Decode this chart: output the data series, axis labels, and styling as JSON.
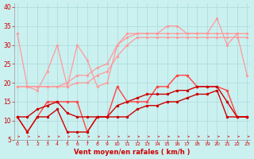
{
  "x": [
    0,
    1,
    2,
    3,
    4,
    5,
    6,
    7,
    8,
    9,
    10,
    11,
    12,
    13,
    14,
    15,
    16,
    17,
    18,
    19,
    20,
    21,
    22,
    23
  ],
  "series": [
    {
      "color": "#FF9999",
      "lw": 0.9,
      "marker": "o",
      "ms": 1.8,
      "values": [
        33,
        19,
        18,
        23,
        30,
        19,
        30,
        26,
        19,
        20,
        30,
        33,
        33,
        33,
        33,
        35,
        35,
        33,
        33,
        33,
        37,
        30,
        33,
        22
      ]
    },
    {
      "color": "#FF9999",
      "lw": 0.9,
      "marker": "o",
      "ms": 1.8,
      "values": [
        19,
        19,
        19,
        19,
        19,
        20,
        22,
        22,
        24,
        25,
        30,
        32,
        33,
        33,
        33,
        33,
        33,
        33,
        33,
        33,
        33,
        33,
        33,
        33
      ]
    },
    {
      "color": "#FF9999",
      "lw": 0.9,
      "marker": "o",
      "ms": 1.8,
      "values": [
        19,
        19,
        19,
        19,
        19,
        19,
        20,
        20,
        22,
        23,
        27,
        30,
        32,
        32,
        32,
        32,
        32,
        32,
        32,
        32,
        32,
        32,
        32,
        32
      ]
    },
    {
      "color": "#FF4444",
      "lw": 1.0,
      "marker": "o",
      "ms": 2.0,
      "values": [
        11,
        7,
        11,
        15,
        15,
        15,
        15,
        7,
        11,
        11,
        19,
        15,
        15,
        15,
        19,
        19,
        22,
        22,
        19,
        19,
        19,
        18,
        11,
        11
      ]
    },
    {
      "color": "#CC0000",
      "lw": 1.0,
      "marker": "o",
      "ms": 2.0,
      "values": [
        11,
        11,
        13,
        14,
        15,
        12,
        11,
        11,
        11,
        11,
        14,
        15,
        16,
        17,
        17,
        17,
        18,
        18,
        19,
        19,
        19,
        15,
        11,
        11
      ]
    },
    {
      "color": "#CC0000",
      "lw": 1.0,
      "marker": "o",
      "ms": 2.0,
      "values": [
        11,
        7,
        11,
        11,
        13,
        7,
        7,
        7,
        11,
        11,
        11,
        11,
        13,
        14,
        14,
        15,
        15,
        16,
        17,
        17,
        18,
        11,
        11,
        11
      ]
    }
  ],
  "xlim": [
    -0.3,
    23.3
  ],
  "ylim": [
    5,
    41
  ],
  "yticks": [
    5,
    10,
    15,
    20,
    25,
    30,
    35,
    40
  ],
  "xticks": [
    0,
    1,
    2,
    3,
    4,
    5,
    6,
    7,
    8,
    9,
    10,
    11,
    12,
    13,
    14,
    15,
    16,
    17,
    18,
    19,
    20,
    21,
    22,
    23
  ],
  "xlabel": "Vent moyen/en rafales ( km/h )",
  "background_color": "#CBF0F0",
  "grid_color": "#AADADA",
  "tick_color": "#CC0000",
  "label_color": "#CC0000"
}
